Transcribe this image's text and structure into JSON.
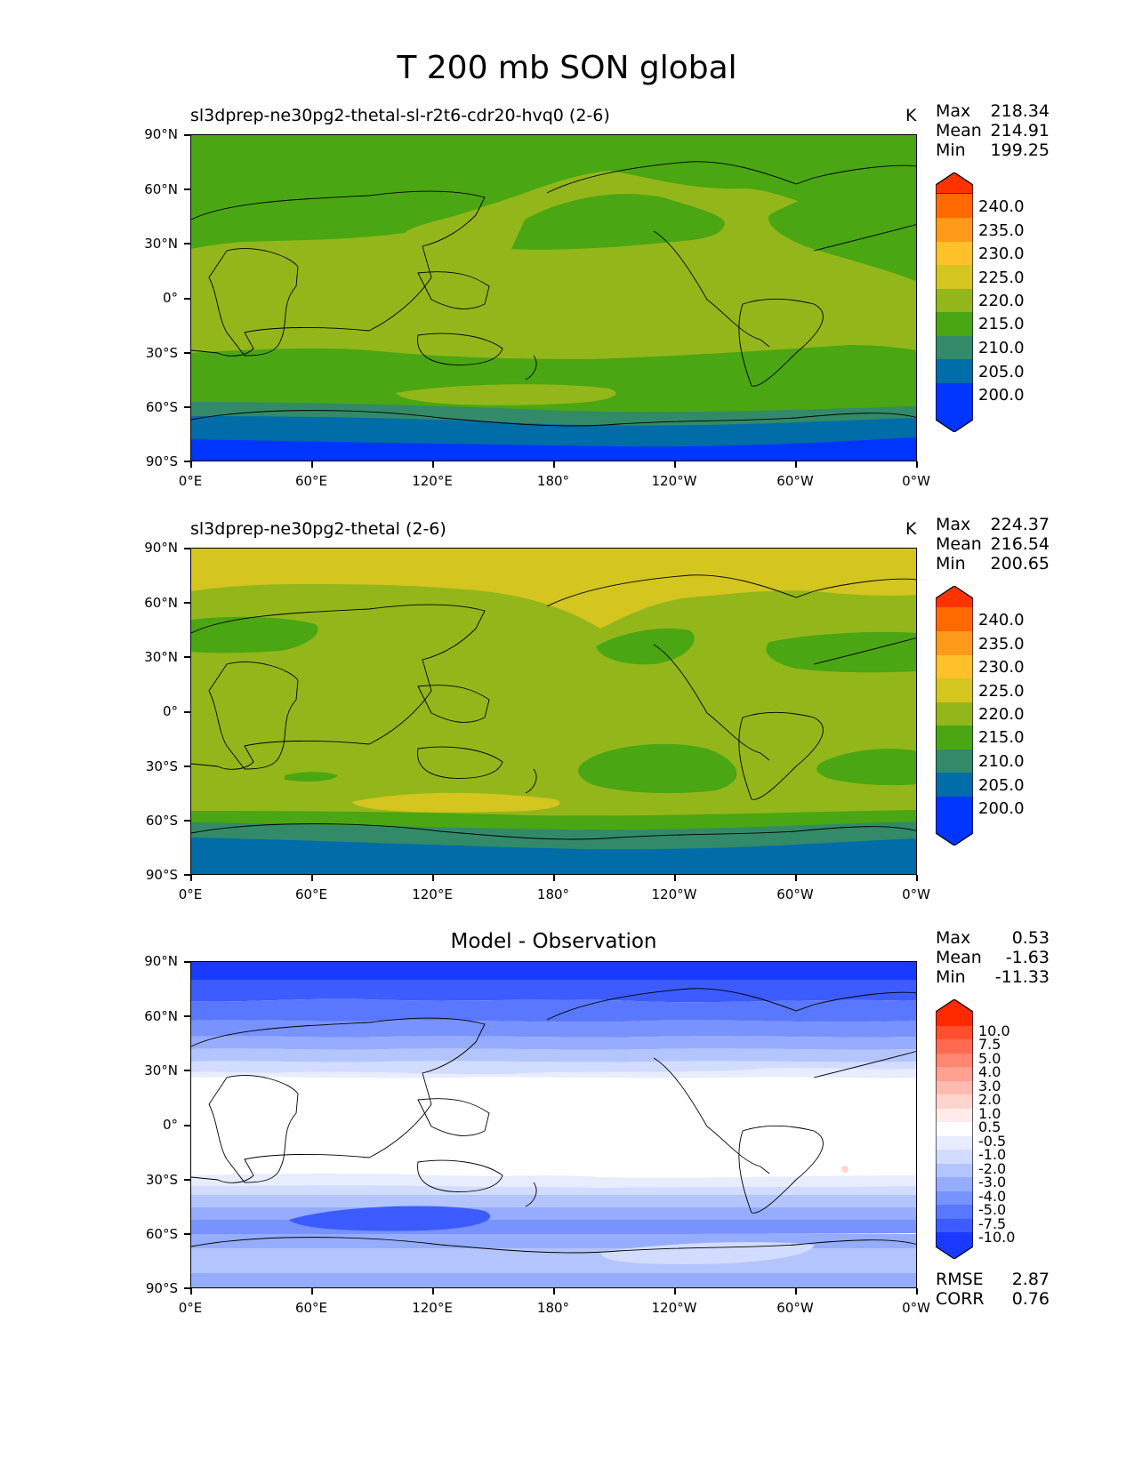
{
  "figure": {
    "title": "T 200 mb SON global"
  },
  "axes": {
    "y_labels": [
      "90°N",
      "60°N",
      "30°N",
      "0°",
      "30°S",
      "60°S",
      "90°S"
    ],
    "x_labels": [
      "0°E",
      "60°E",
      "120°E",
      "180°",
      "120°W",
      "60°W",
      "0°W"
    ]
  },
  "panels": [
    {
      "title": "sl3dprep-ne30pg2-thetal-sl-r2t6-cdr20-hvq0 (2-6)",
      "units": "K",
      "stats": {
        "max_label": "Max",
        "max": "218.34",
        "mean_label": "Mean",
        "mean": "214.91",
        "min_label": "Min",
        "min": "199.25"
      },
      "colorbar": {
        "labels": [
          "240.0",
          "235.0",
          "230.0",
          "225.0",
          "220.0",
          "215.0",
          "210.0",
          "205.0",
          "200.0"
        ],
        "colors": [
          "#ff3300",
          "#ff6a00",
          "#ff9a1a",
          "#ffc12a",
          "#d4c51f",
          "#93b71a",
          "#4aa612",
          "#328a68",
          "#006ca8",
          "#0035ff"
        ]
      }
    },
    {
      "title": "sl3dprep-ne30pg2-thetal (2-6)",
      "units": "K",
      "stats": {
        "max_label": "Max",
        "max": "224.37",
        "mean_label": "Mean",
        "mean": "216.54",
        "min_label": "Min",
        "min": "200.65"
      },
      "colorbar": {
        "labels": [
          "240.0",
          "235.0",
          "230.0",
          "225.0",
          "220.0",
          "215.0",
          "210.0",
          "205.0",
          "200.0"
        ],
        "colors": [
          "#ff3300",
          "#ff6a00",
          "#ff9a1a",
          "#ffc12a",
          "#d4c51f",
          "#93b71a",
          "#4aa612",
          "#328a68",
          "#006ca8",
          "#0035ff"
        ]
      }
    },
    {
      "title": "Model - Observation",
      "units": "",
      "stats": {
        "max_label": "Max",
        "max": "0.53",
        "mean_label": "Mean",
        "mean": "-1.63",
        "min_label": "Min",
        "min": "-11.33"
      },
      "colorbar": {
        "labels": [
          "10.0",
          "7.5",
          "5.0",
          "4.0",
          "3.0",
          "2.0",
          "1.0",
          "0.5",
          "-0.5",
          "-1.0",
          "-2.0",
          "-3.0",
          "-4.0",
          "-5.0",
          "-7.5",
          "-10.0"
        ],
        "colors": [
          "#ff2a00",
          "#ff4f2f",
          "#ff6a50",
          "#ff8670",
          "#ffa090",
          "#ffbab0",
          "#ffd4cc",
          "#ffecea",
          "#ffffff",
          "#e8ecff",
          "#d2dcff",
          "#b4c4ff",
          "#96acff",
          "#7892ff",
          "#5a78ff",
          "#3c5cff",
          "#1a3aff"
        ]
      },
      "metrics": {
        "rmse_label": "RMSE",
        "rmse": "2.87",
        "corr_label": "CORR",
        "corr": "0.76"
      }
    }
  ]
}
